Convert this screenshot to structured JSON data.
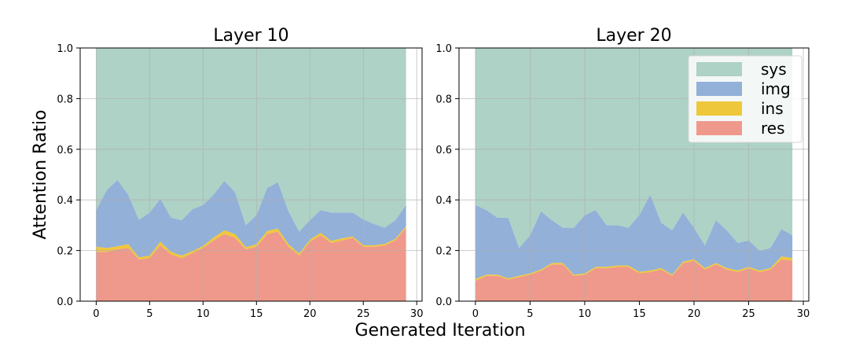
{
  "chart_data": {
    "type": "area",
    "stacked": true,
    "ylabel": "Attention Ratio",
    "xlabel": "Generated Iteration",
    "xlim": [
      -1.5,
      30.5
    ],
    "ylim": [
      0,
      1.0
    ],
    "xticks": [
      0,
      5,
      10,
      15,
      20,
      25,
      30
    ],
    "yticks": [
      0.0,
      0.2,
      0.4,
      0.6,
      0.8,
      1.0
    ],
    "grid": true,
    "legend": {
      "panel": 1,
      "placement": "top-right"
    },
    "colors": {
      "res": "#ee998b",
      "ins": "#efc73b",
      "img": "#92b0d8",
      "sys": "#aed2c5"
    },
    "series_order": [
      "res",
      "ins",
      "img",
      "sys"
    ],
    "legend_order": [
      "sys",
      "img",
      "ins",
      "res"
    ],
    "x": [
      0,
      1,
      2,
      3,
      4,
      5,
      6,
      7,
      8,
      9,
      10,
      11,
      12,
      13,
      14,
      15,
      16,
      17,
      18,
      19,
      20,
      21,
      22,
      23,
      24,
      25,
      26,
      27,
      28,
      29
    ],
    "panels": [
      {
        "title": "Layer 10",
        "series": [
          {
            "name": "res",
            "values": [
              0.195,
              0.195,
              0.205,
              0.21,
              0.165,
              0.17,
              0.22,
              0.185,
              0.17,
              0.19,
              0.21,
              0.24,
              0.265,
              0.25,
              0.205,
              0.215,
              0.265,
              0.275,
              0.215,
              0.18,
              0.235,
              0.26,
              0.23,
              0.24,
              0.25,
              0.215,
              0.215,
              0.22,
              0.24,
              0.29
            ]
          },
          {
            "name": "ins",
            "values": [
              0.02,
              0.015,
              0.012,
              0.015,
              0.008,
              0.01,
              0.015,
              0.01,
              0.01,
              0.008,
              0.008,
              0.012,
              0.015,
              0.015,
              0.008,
              0.01,
              0.012,
              0.012,
              0.01,
              0.008,
              0.008,
              0.01,
              0.008,
              0.008,
              0.006,
              0.006,
              0.006,
              0.006,
              0.006,
              0.006
            ]
          },
          {
            "name": "img",
            "values": [
              0.145,
              0.23,
              0.262,
              0.195,
              0.148,
              0.17,
              0.17,
              0.135,
              0.14,
              0.165,
              0.162,
              0.17,
              0.195,
              0.165,
              0.087,
              0.115,
              0.17,
              0.183,
              0.13,
              0.087,
              0.077,
              0.09,
              0.112,
              0.102,
              0.094,
              0.102,
              0.084,
              0.064,
              0.074,
              0.084
            ]
          },
          {
            "name": "sys",
            "values": [
              0.64,
              0.56,
              0.521,
              0.58,
              0.679,
              0.65,
              0.595,
              0.67,
              0.68,
              0.637,
              0.62,
              0.578,
              0.525,
              0.57,
              0.7,
              0.66,
              0.553,
              0.53,
              0.645,
              0.725,
              0.68,
              0.64,
              0.65,
              0.65,
              0.65,
              0.677,
              0.695,
              0.71,
              0.68,
              0.62
            ]
          }
        ]
      },
      {
        "title": "Layer 20",
        "series": [
          {
            "name": "res",
            "values": [
              0.08,
              0.1,
              0.1,
              0.085,
              0.095,
              0.105,
              0.12,
              0.145,
              0.145,
              0.1,
              0.105,
              0.13,
              0.13,
              0.135,
              0.135,
              0.11,
              0.115,
              0.125,
              0.1,
              0.15,
              0.16,
              0.125,
              0.145,
              0.125,
              0.115,
              0.13,
              0.115,
              0.125,
              0.165,
              0.16
            ]
          },
          {
            "name": "ins",
            "values": [
              0.008,
              0.005,
              0.005,
              0.005,
              0.005,
              0.005,
              0.005,
              0.006,
              0.006,
              0.005,
              0.005,
              0.006,
              0.006,
              0.006,
              0.006,
              0.006,
              0.006,
              0.006,
              0.005,
              0.006,
              0.006,
              0.006,
              0.006,
              0.006,
              0.006,
              0.006,
              0.006,
              0.006,
              0.012,
              0.01
            ]
          },
          {
            "name": "img",
            "values": [
              0.292,
              0.255,
              0.225,
              0.24,
              0.11,
              0.15,
              0.23,
              0.169,
              0.139,
              0.185,
              0.23,
              0.224,
              0.164,
              0.159,
              0.149,
              0.224,
              0.299,
              0.179,
              0.175,
              0.194,
              0.124,
              0.089,
              0.169,
              0.149,
              0.109,
              0.104,
              0.079,
              0.079,
              0.108,
              0.09
            ]
          },
          {
            "name": "sys",
            "values": [
              0.62,
              0.64,
              0.67,
              0.67,
              0.79,
              0.74,
              0.645,
              0.68,
              0.71,
              0.71,
              0.66,
              0.64,
              0.7,
              0.7,
              0.71,
              0.66,
              0.58,
              0.69,
              0.72,
              0.65,
              0.71,
              0.78,
              0.68,
              0.72,
              0.77,
              0.76,
              0.8,
              0.79,
              0.715,
              0.74
            ]
          }
        ]
      }
    ]
  }
}
